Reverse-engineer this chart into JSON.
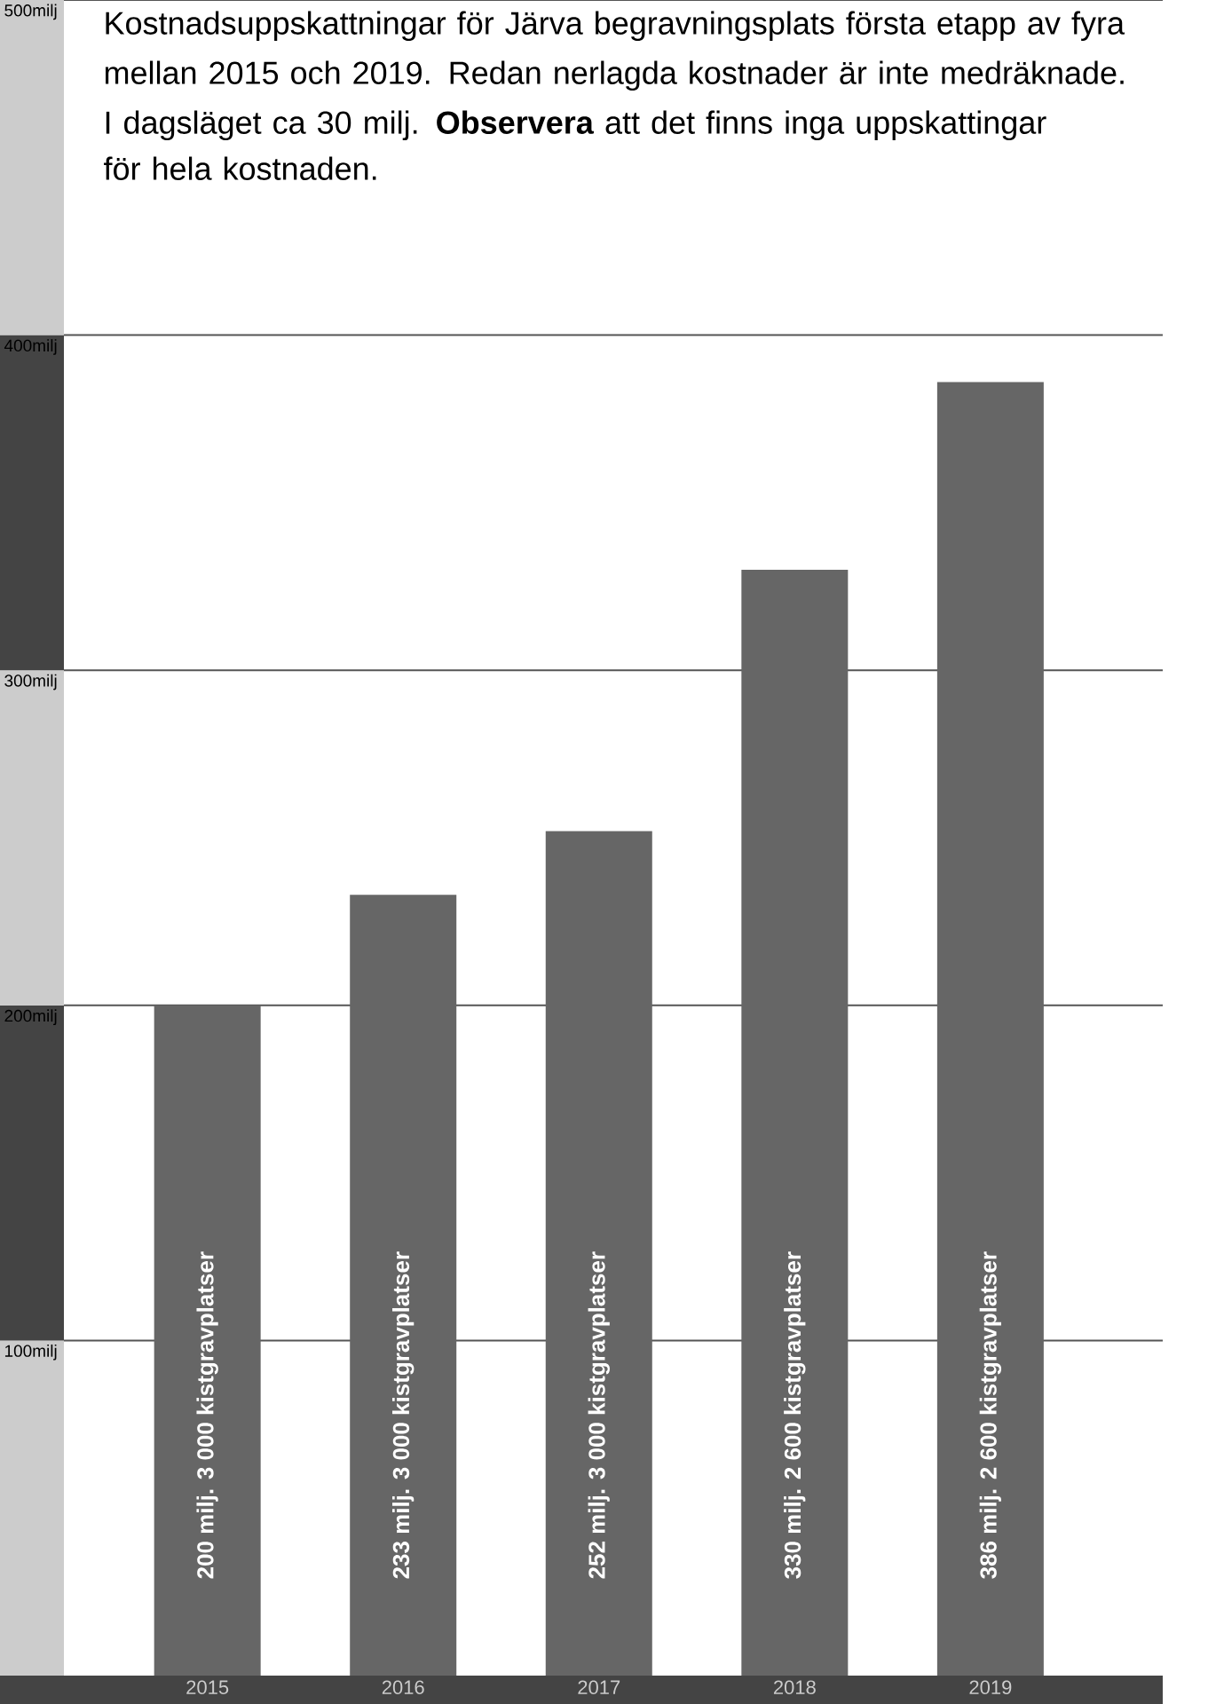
{
  "chart_data": {
    "type": "bar",
    "title": "Kostnadsuppskattningar för Järva begravningsplats första etapp av fyra mellan 2015 och 2019. Redan nerlagda kostnader är inte medräknade.",
    "subtitle": "I dagsläget ca 30 milj. **Observera** att det finns inga uppskattingar för hela kostnaden.",
    "categories": [
      "2015",
      "2016",
      "2017",
      "2018",
      "2019"
    ],
    "values": [
      200,
      233,
      252,
      330,
      386
    ],
    "color": "#666666",
    "value_labels": [
      "200 milj. 3 000 kistgravplatser",
      "233 milj. 3 000 kistgravplatser",
      "252 milj. 3 000 kistgravplatser",
      "330 milj. 2 600 kistgravplatser",
      "386 milj. 2 600 kistgravplatser"
    ],
    "ylim": [
      0,
      500
    ],
    "yticks": [
      {
        "value": 100,
        "label": "100milj"
      },
      {
        "value": 200,
        "label": "200milj"
      },
      {
        "value": 300,
        "label": "300milj"
      },
      {
        "value": 400,
        "label": "400milj"
      },
      {
        "value": 500,
        "label": "500milj"
      }
    ],
    "grid": "y"
  }
}
